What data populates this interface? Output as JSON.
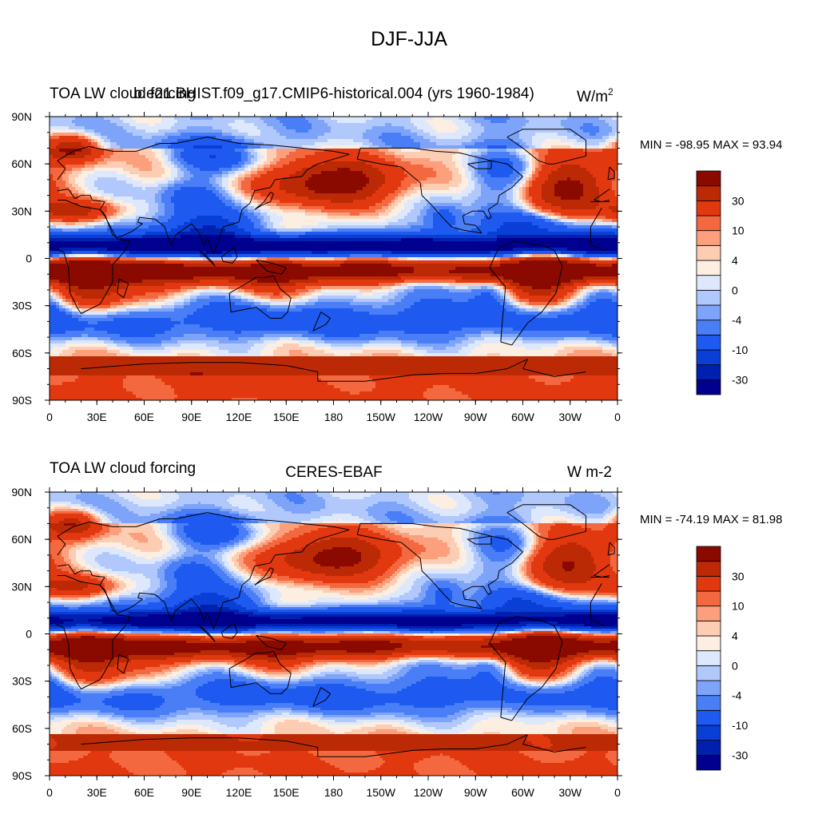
{
  "page_title": "DJF-JJA",
  "colors": {
    "land_outline": "#000000",
    "colorbar_outline": "#000000"
  },
  "colorbar": {
    "tick_labels": [
      "30",
      "10",
      "4",
      "0",
      "-4",
      "-10",
      "-30"
    ],
    "colors": [
      "#00008f",
      "#0020b0",
      "#0a3fd6",
      "#1e5af0",
      "#4a7ef7",
      "#7ea4fa",
      "#b0c8fb",
      "#dde8fc",
      "#fdeee2",
      "#fdcdb3",
      "#fb9f7c",
      "#f4683f",
      "#e2380f",
      "#bb2a05",
      "#8a0a00"
    ]
  },
  "chart_data": [
    {
      "type": "heatmap",
      "title_left": "TOA LW cloud forcing",
      "title_center": "b.e21.BHIST.f09_g17.CMIP6-historical.004 (yrs 1960-1984)",
      "units_text": "W/m",
      "units_sup": "2",
      "min_max": "MIN = -98.95 MAX =  93.94",
      "min": -98.95,
      "max": 93.94,
      "x_ticks": [
        "0",
        "30E",
        "60E",
        "90E",
        "120E",
        "150E",
        "180",
        "150W",
        "120W",
        "90W",
        "60W",
        "30W",
        "0"
      ],
      "y_ticks": [
        "90N",
        "60N",
        "30N",
        "0",
        "30S",
        "60S",
        "90S"
      ],
      "xlim": [
        0,
        360
      ],
      "ylim": [
        -90,
        90
      ]
    },
    {
      "type": "heatmap",
      "title_left": "TOA LW cloud forcing",
      "title_center": "CERES-EBAF",
      "units_text": "W m-2",
      "units_sup": "",
      "min_max": "MIN = -74.19 MAX =  81.98",
      "min": -74.19,
      "max": 81.98,
      "x_ticks": [
        "0",
        "30E",
        "60E",
        "90E",
        "120E",
        "150E",
        "180",
        "150W",
        "120W",
        "90W",
        "60W",
        "30W",
        "0"
      ],
      "y_ticks": [
        "90N",
        "60N",
        "30N",
        "0",
        "30S",
        "60S",
        "90S"
      ],
      "xlim": [
        0,
        360
      ],
      "ylim": [
        -90,
        90
      ]
    }
  ]
}
